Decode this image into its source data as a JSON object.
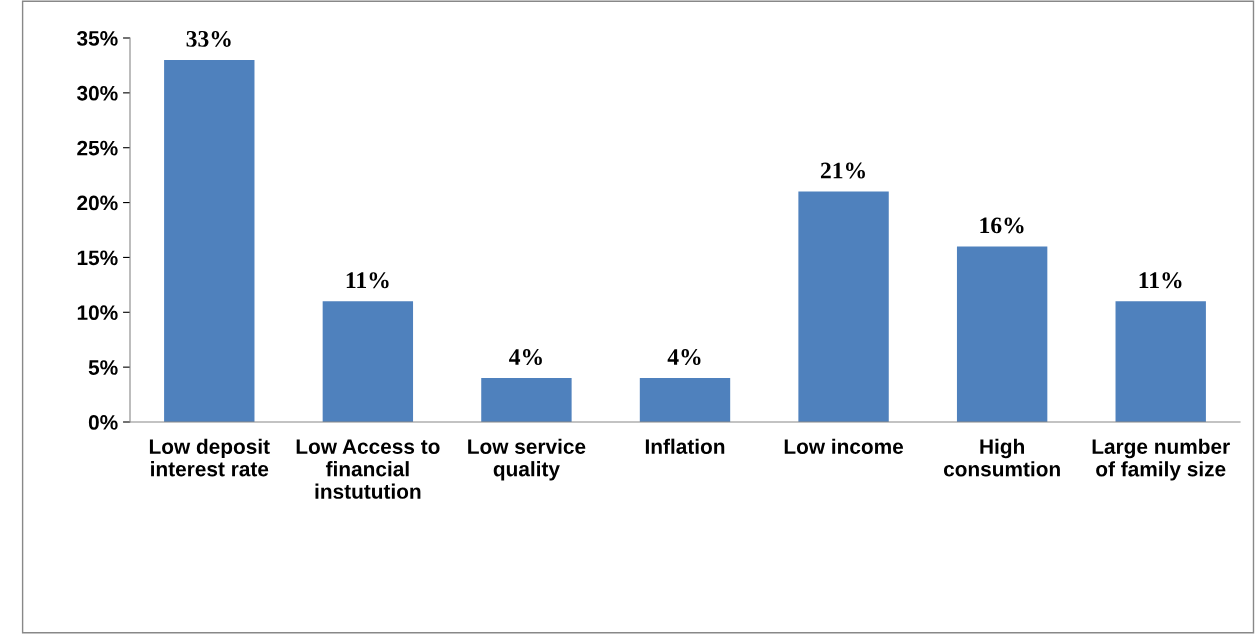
{
  "chart_data": {
    "type": "bar",
    "categories": [
      "Low deposit\ninterest rate",
      "Low Access to\nfinancial\ninstutution",
      "Low service\nquality",
      "Inflation",
      "Low income",
      "High\nconsumtion",
      "Large number\nof family size"
    ],
    "values": [
      33,
      11,
      4,
      4,
      21,
      16,
      11
    ],
    "value_labels": [
      "33%",
      "11%",
      "4%",
      "4%",
      "21%",
      "16%",
      "11%"
    ],
    "color": "#4f81bd",
    "ylim": [
      0,
      35
    ],
    "yticks": [
      {
        "value": 0,
        "label": "0%"
      },
      {
        "value": 5,
        "label": "5%"
      },
      {
        "value": 10,
        "label": "10%"
      },
      {
        "value": 15,
        "label": "15%"
      },
      {
        "value": 20,
        "label": "20%"
      },
      {
        "value": 25,
        "label": "25%"
      },
      {
        "value": 30,
        "label": "30%"
      },
      {
        "value": 35,
        "label": "35%"
      }
    ],
    "grid": false
  }
}
